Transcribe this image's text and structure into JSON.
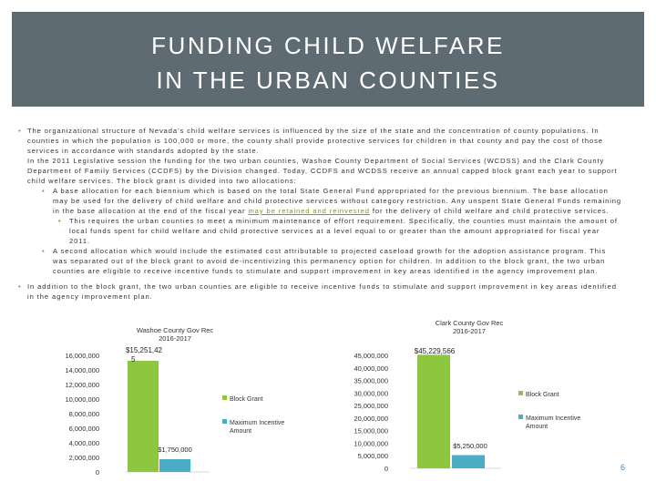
{
  "slide": {
    "title_line1": "FUNDING CHILD WELFARE",
    "title_line2": "IN THE URBAN COUNTIES",
    "page_number": "6"
  },
  "body": {
    "p1": "The organizational structure of Nevada’s child welfare services is influenced by the size of the state and the concentration of county populations. In counties in which the population is 100,000 or more, the county shall provide protective services for children in that county and pay the cost of those services in accordance with standards adopted by the state.",
    "p2": "In the 2011 Legislative session the funding for the two urban counties, Washoe County Department of Social Services (WCDSS) and the Clark County Department of Family Services (CCDFS) by the Division changed. Today, CCDFS and WCDSS receive an annual capped block grant each year to support child welfare services. The block grant is divided into two allocations:",
    "sub1_a": "A base allocation for each biennium which is based on the total State General Fund appropriated for the previous biennium. The base allocation may be used for the delivery of child welfare and child protective services without category restriction. Any unspent State General Funds remaining in the base allocation at the end of the fiscal year",
    "sub1_link": "may be retained and reinvested",
    "sub1_b": "for the delivery of child welfare and child protective services.",
    "subsub1": "This requires the urban counties to meet a minimum maintenance of effort requirement. Specifically, the counties must maintain the amount of local funds spent for child welfare and child protective services at a level equal to or greater than the amount appropriated for fiscal year 2011.",
    "sub2": "A second allocation which would include the estimated cost attributable to projected caseload growth for the adoption assistance program. This was separated out of the block grant to avoid de-incentivizing this permanency option for children. In addition to the block grant, the two urban counties are eligible to receive incentive funds to stimulate and support improvement in key areas identified in the agency improvement plan.",
    "p3": "In addition to the block grant, the two urban counties are eligible to receive incentive funds to stimulate and support improvement in key areas identified in the agency improvement plan."
  },
  "colors": {
    "block_grant": "#8dc63f",
    "max_incentive": "#4bacc6",
    "title_bg": "#5e6b73"
  },
  "chart_data": [
    {
      "type": "bar",
      "title": "Washoe County Gov Rec 2016-2017",
      "title_line1": "Washoe County Gov Rec",
      "title_line2": "2016-2017",
      "yticks": [
        "16,000,000",
        "14,000,000",
        "12,000,000",
        "10,000,000",
        "8,000,000",
        "6,000,000",
        "4,000,000",
        "2,000,000",
        "0"
      ],
      "ylim": [
        0,
        16000000
      ],
      "series": [
        {
          "name": "Block Grant",
          "values": [
            15251425
          ],
          "label_line1": "$15,251,42",
          "label_line2": "5"
        },
        {
          "name": "Maximum Incentive Amount",
          "values": [
            1750000
          ],
          "label": "$1,750,000"
        }
      ],
      "legend": [
        "Block Grant",
        "Maximum Incentive",
        "Amount"
      ],
      "legend_position": "right"
    },
    {
      "type": "bar",
      "title": "Clark County Gov Rec 2016-2017",
      "title_line1": "Clark County Gov Rec",
      "title_line2": "2016-2017",
      "yticks": [
        "45,000,000",
        "40,000,000",
        "35,000,000",
        "30,000,000",
        "25,000,000",
        "20,000,000",
        "15,000,000",
        "10,000,000",
        "5,000,000",
        "0"
      ],
      "ylim": [
        0,
        45000000
      ],
      "series": [
        {
          "name": "Block Grant",
          "values": [
            45229566
          ],
          "label": "$45,229,566"
        },
        {
          "name": "Maximum Incentive Amount",
          "values": [
            5250000
          ],
          "label": "$5,250,000"
        }
      ],
      "legend": [
        "Block Grant",
        "Maximum Incentive",
        "Amount"
      ],
      "legend_position": "right"
    }
  ]
}
